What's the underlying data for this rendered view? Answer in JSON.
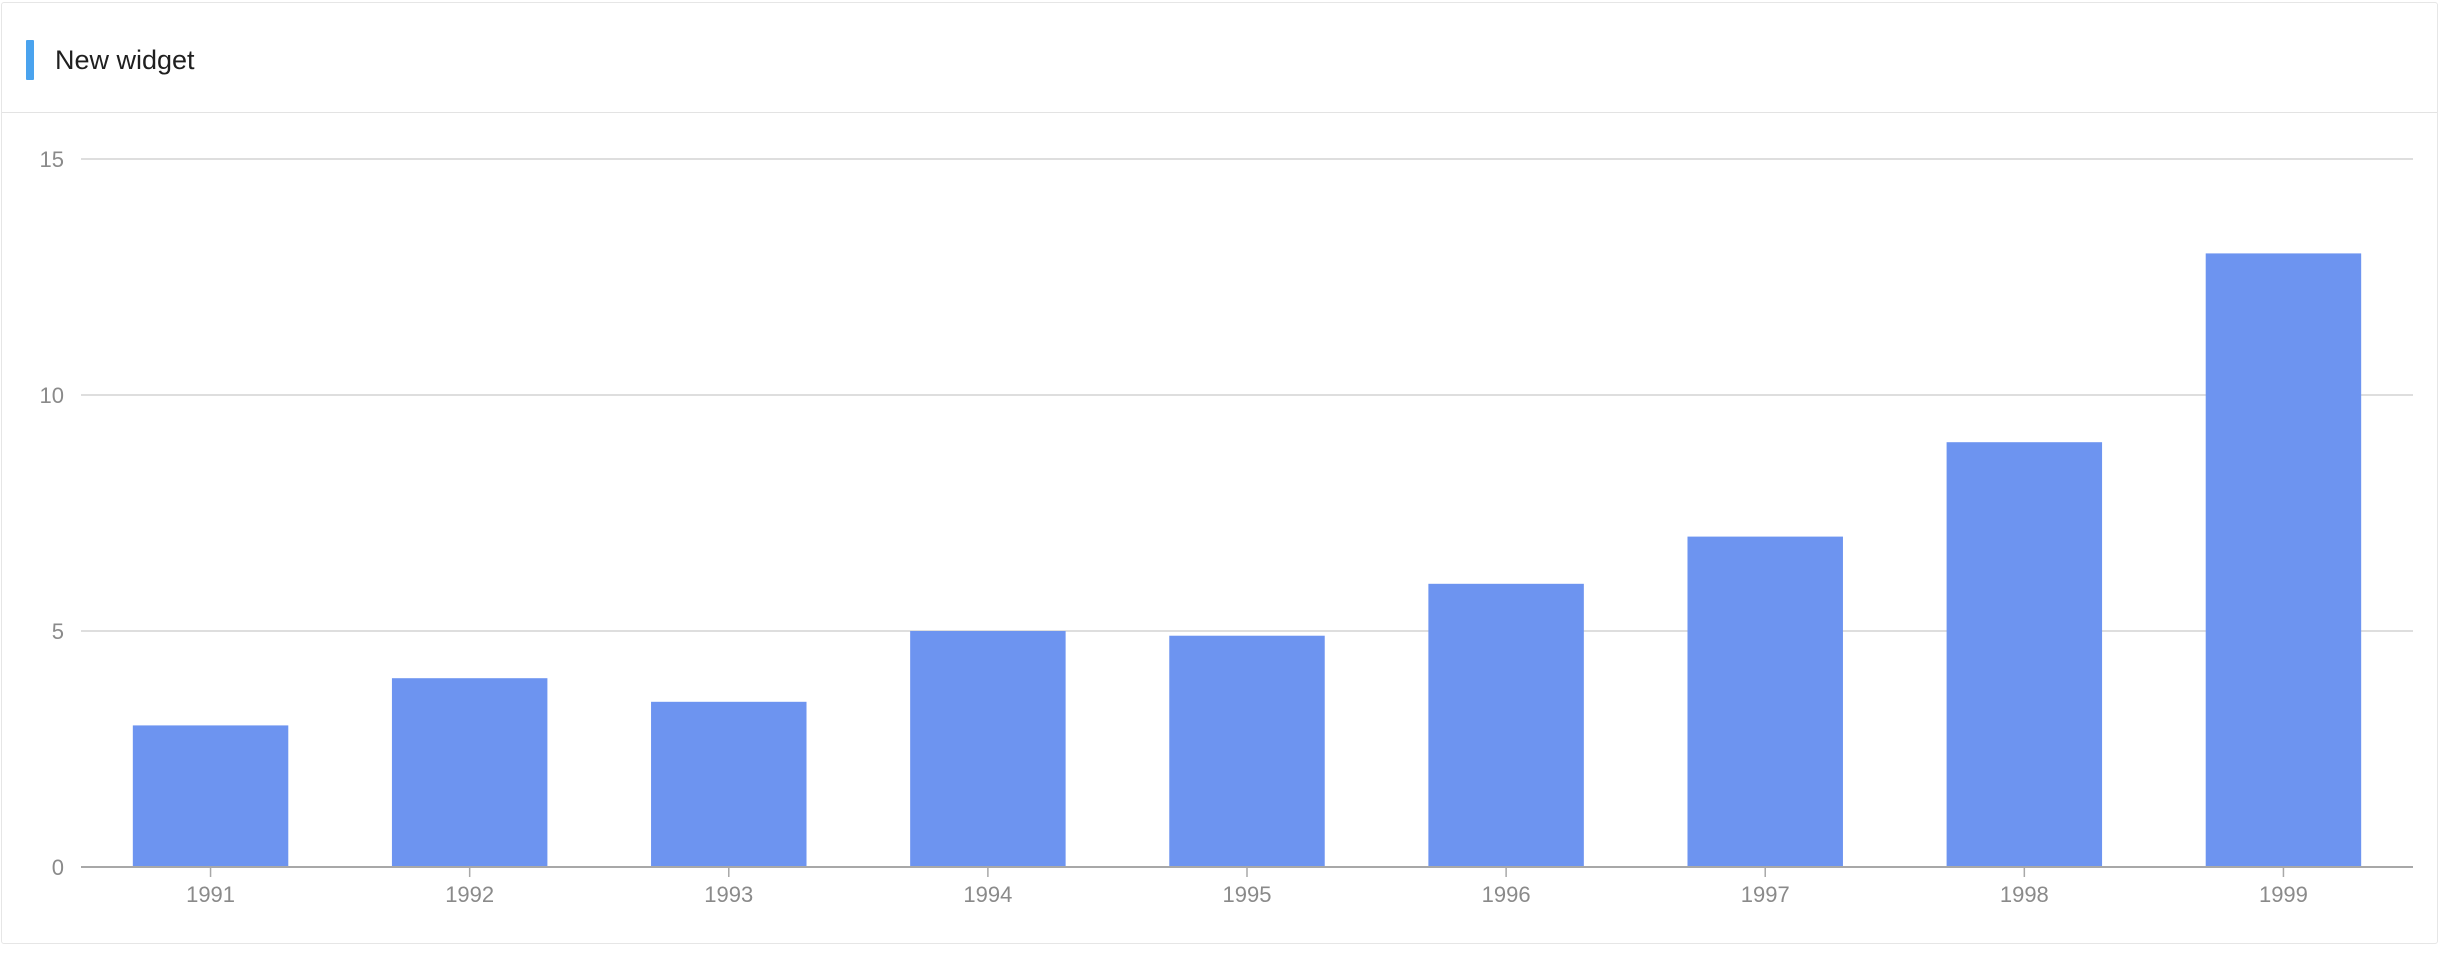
{
  "widget": {
    "title": "New widget",
    "accent_color": "#4aa3ee"
  },
  "chart_data": {
    "type": "bar",
    "title": "",
    "xlabel": "",
    "ylabel": "",
    "categories": [
      "1991",
      "1992",
      "1993",
      "1994",
      "1995",
      "1996",
      "1997",
      "1998",
      "1999"
    ],
    "values": [
      3,
      4,
      3.5,
      5,
      4.9,
      6,
      7,
      9,
      13
    ],
    "ylim": [
      0,
      15
    ],
    "yticks": [
      "0",
      "5",
      "10",
      "15"
    ],
    "grid": true,
    "legend": "none",
    "bar_color": "#6d94f0",
    "grid_color": "#d4d4d4",
    "axis_color": "#a8a8a8",
    "tick_label_color": "#8a8a8a"
  }
}
